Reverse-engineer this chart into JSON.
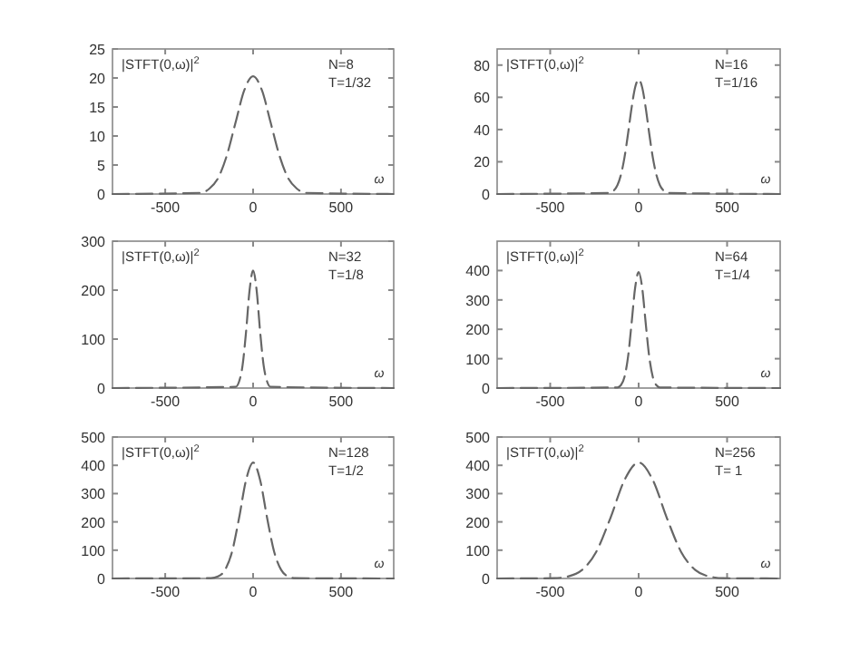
{
  "chart_data": [
    {
      "type": "line",
      "xlabel": "ω",
      "annotations": [
        "|STFT(0,ω)|$^{2}$",
        "N=8",
        "T=1/32"
      ],
      "x": [
        -800,
        -300,
        -250,
        -200,
        -150,
        -100,
        -50,
        0,
        50,
        100,
        150,
        200,
        250,
        300,
        800
      ],
      "series": [
        {
          "color": "#666666",
          "values": [
            0,
            0.2,
            0.9,
            2.7,
            6.6,
            12.3,
            17.9,
            20.3,
            17.9,
            12.3,
            6.6,
            2.7,
            0.9,
            0.2,
            0
          ]
        }
      ],
      "xlim": [
        -800,
        800
      ],
      "ylim": [
        0,
        25
      ],
      "xticks": [
        -500,
        0,
        500
      ],
      "yticks": [
        0,
        5,
        10,
        15,
        20,
        25
      ],
      "line_style": "dashed"
    },
    {
      "type": "line",
      "xlabel": "ω",
      "annotations": [
        "|STFT(0,ω)|$^{2}$",
        "N=16",
        "T=1/16"
      ],
      "x": [
        -800,
        -160,
        -140,
        -120,
        -100,
        -80,
        -60,
        -40,
        -20,
        0,
        20,
        40,
        60,
        80,
        100,
        120,
        140,
        160,
        800
      ],
      "series": [
        {
          "color": "#666666",
          "values": [
            0,
            0.7,
            2.2,
            5.5,
            12,
            22.7,
            37.4,
            53.4,
            66.1,
            71,
            66.1,
            53.4,
            37.4,
            22.7,
            12,
            5.5,
            2.2,
            0.7,
            0
          ]
        }
      ],
      "xlim": [
        -800,
        800
      ],
      "ylim": [
        0,
        90
      ],
      "xticks": [
        -500,
        0,
        500
      ],
      "yticks": [
        0,
        20,
        40,
        60,
        80
      ],
      "line_style": "dashed"
    },
    {
      "type": "line",
      "xlabel": "ω",
      "annotations": [
        "|STFT(0,ω)|$^{2}$",
        "N=32",
        "T=1/8"
      ],
      "x": [
        -800,
        -100,
        -80,
        -60,
        -40,
        -20,
        0,
        20,
        40,
        60,
        80,
        100,
        800
      ],
      "series": [
        {
          "color": "#666666",
          "values": [
            0,
            2.4,
            13,
            46,
            115,
            200,
            240,
            200,
            115,
            46,
            13,
            2.4,
            0
          ]
        }
      ],
      "xlim": [
        -800,
        800
      ],
      "ylim": [
        0,
        300
      ],
      "xticks": [
        -500,
        0,
        500
      ],
      "yticks": [
        0,
        100,
        200,
        300
      ],
      "line_style": "dashed"
    },
    {
      "type": "line",
      "xlabel": "ω",
      "annotations": [
        "|STFT(0,ω)|$^{2}$",
        "N=64",
        "T=1/4"
      ],
      "x": [
        -800,
        -120,
        -100,
        -80,
        -60,
        -40,
        -20,
        0,
        20,
        40,
        60,
        80,
        100,
        120,
        800
      ],
      "series": [
        {
          "color": "#666666",
          "values": [
            0,
            2,
            10,
            38,
            106,
            220,
            341,
            395,
            341,
            220,
            106,
            38,
            10,
            2,
            0
          ]
        }
      ],
      "xlim": [
        -800,
        800
      ],
      "ylim": [
        0,
        500
      ],
      "xticks": [
        -500,
        0,
        500
      ],
      "yticks": [
        0,
        100,
        200,
        300,
        400
      ],
      "line_style": "dashed"
    },
    {
      "type": "line",
      "xlabel": "ω",
      "annotations": [
        "|STFT(0,ω)|$^{2}$",
        "N=128",
        "T=1/2"
      ],
      "x": [
        -800,
        -240,
        -200,
        -160,
        -120,
        -80,
        -40,
        0,
        40,
        80,
        120,
        160,
        200,
        240,
        800
      ],
      "series": [
        {
          "color": "#666666",
          "values": [
            0,
            1,
            7,
            30,
            94,
            213,
            348,
            410,
            348,
            213,
            94,
            30,
            7,
            1,
            0
          ]
        }
      ],
      "xlim": [
        -800,
        800
      ],
      "ylim": [
        0,
        500
      ],
      "xticks": [
        -500,
        0,
        500
      ],
      "yticks": [
        0,
        100,
        200,
        300,
        400,
        500
      ],
      "line_style": "dashed"
    },
    {
      "type": "line",
      "xlabel": "ω",
      "annotations": [
        "|STFT(0,ω)|$^{2}$",
        "N=256",
        "T= 1"
      ],
      "x": [
        -800,
        -480,
        -400,
        -320,
        -240,
        -160,
        -80,
        0,
        80,
        160,
        240,
        320,
        400,
        480,
        800
      ],
      "series": [
        {
          "color": "#666666",
          "values": [
            0,
            1,
            7,
            30,
            94,
            213,
            348,
            410,
            348,
            213,
            94,
            30,
            7,
            1,
            0
          ]
        }
      ],
      "xlim": [
        -800,
        800
      ],
      "ylim": [
        0,
        500
      ],
      "xticks": [
        -500,
        0,
        500
      ],
      "yticks": [
        0,
        100,
        200,
        300,
        400,
        500
      ],
      "line_style": "dashed"
    }
  ]
}
